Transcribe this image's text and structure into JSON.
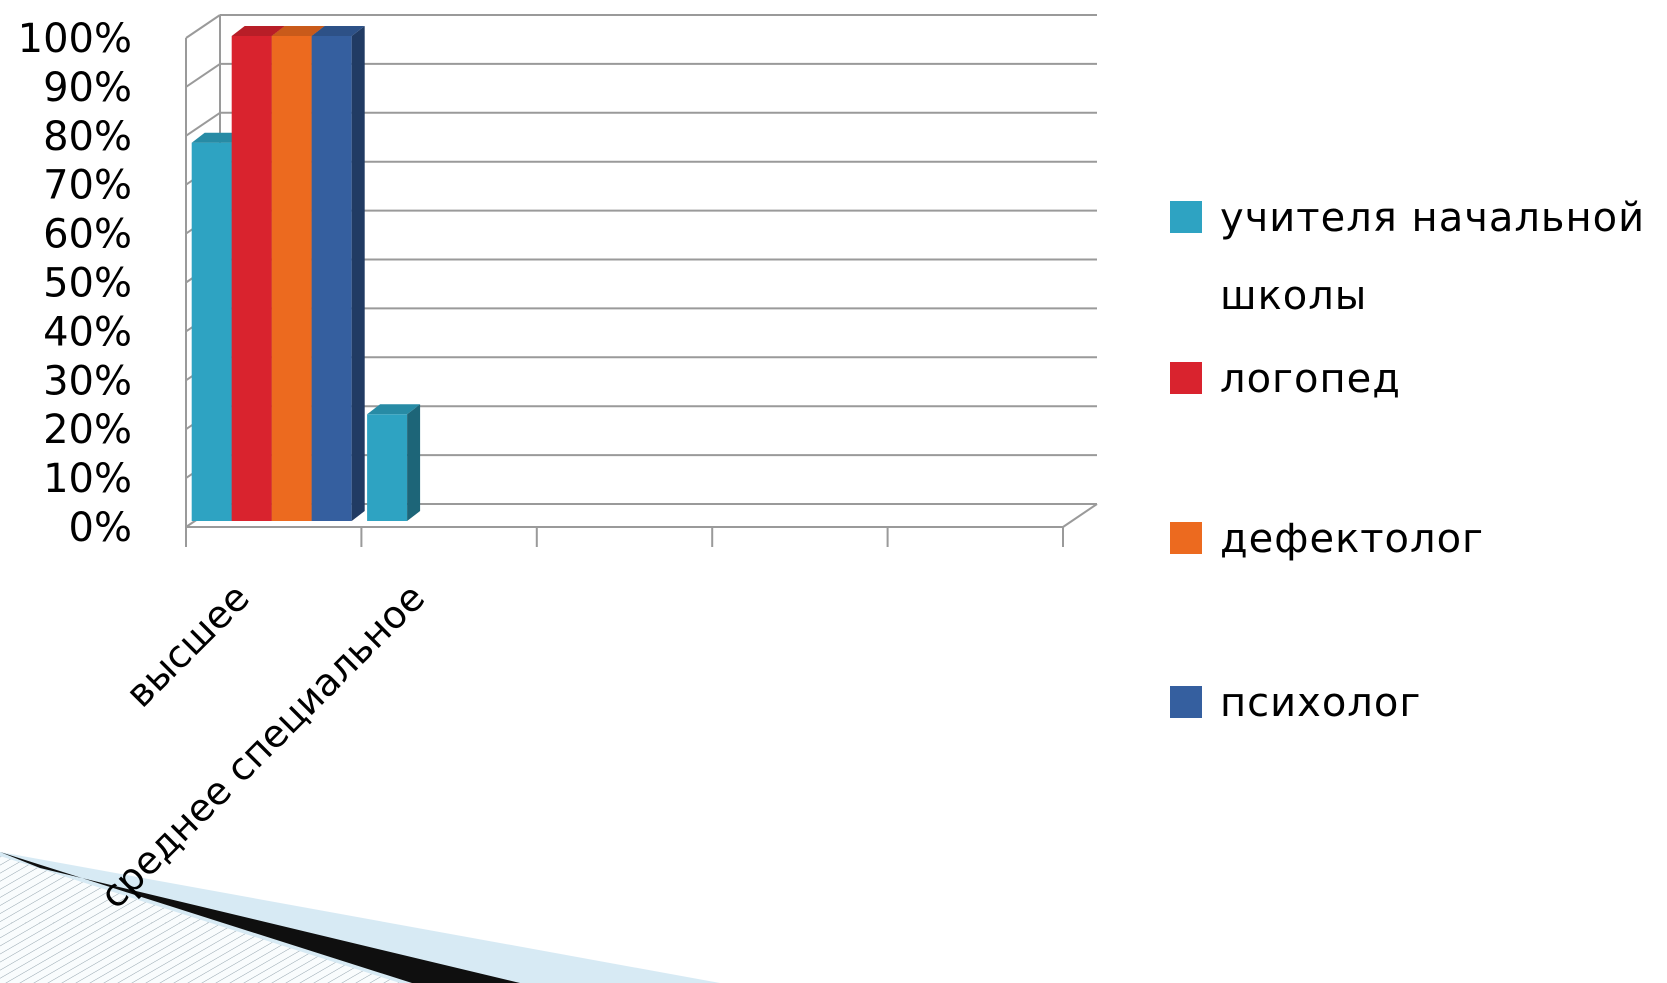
{
  "chart_data": {
    "type": "bar",
    "title": "",
    "xlabel": "",
    "ylabel": "",
    "categories": [
      "высшее",
      "среднее специальное",
      "",
      "",
      ""
    ],
    "series": [
      {
        "name": "учителя начальной школы",
        "values": [
          78,
          22,
          null,
          null,
          null
        ],
        "color": "#2ea3c2"
      },
      {
        "name": "логопед",
        "values": [
          100,
          null,
          null,
          null,
          null
        ],
        "color": "#d9232e"
      },
      {
        "name": "дефектолог",
        "values": [
          100,
          null,
          null,
          null,
          null
        ],
        "color": "#ec6a1f"
      },
      {
        "name": "психолог",
        "values": [
          100,
          null,
          null,
          null,
          null
        ],
        "color": "#355f9f"
      }
    ],
    "ylim": [
      0,
      100
    ],
    "yticks": [
      "0%",
      "10%",
      "20%",
      "30%",
      "40%",
      "50%",
      "60%",
      "70%",
      "80%",
      "90%",
      "100%"
    ],
    "grid": true,
    "legend_position": "right"
  }
}
